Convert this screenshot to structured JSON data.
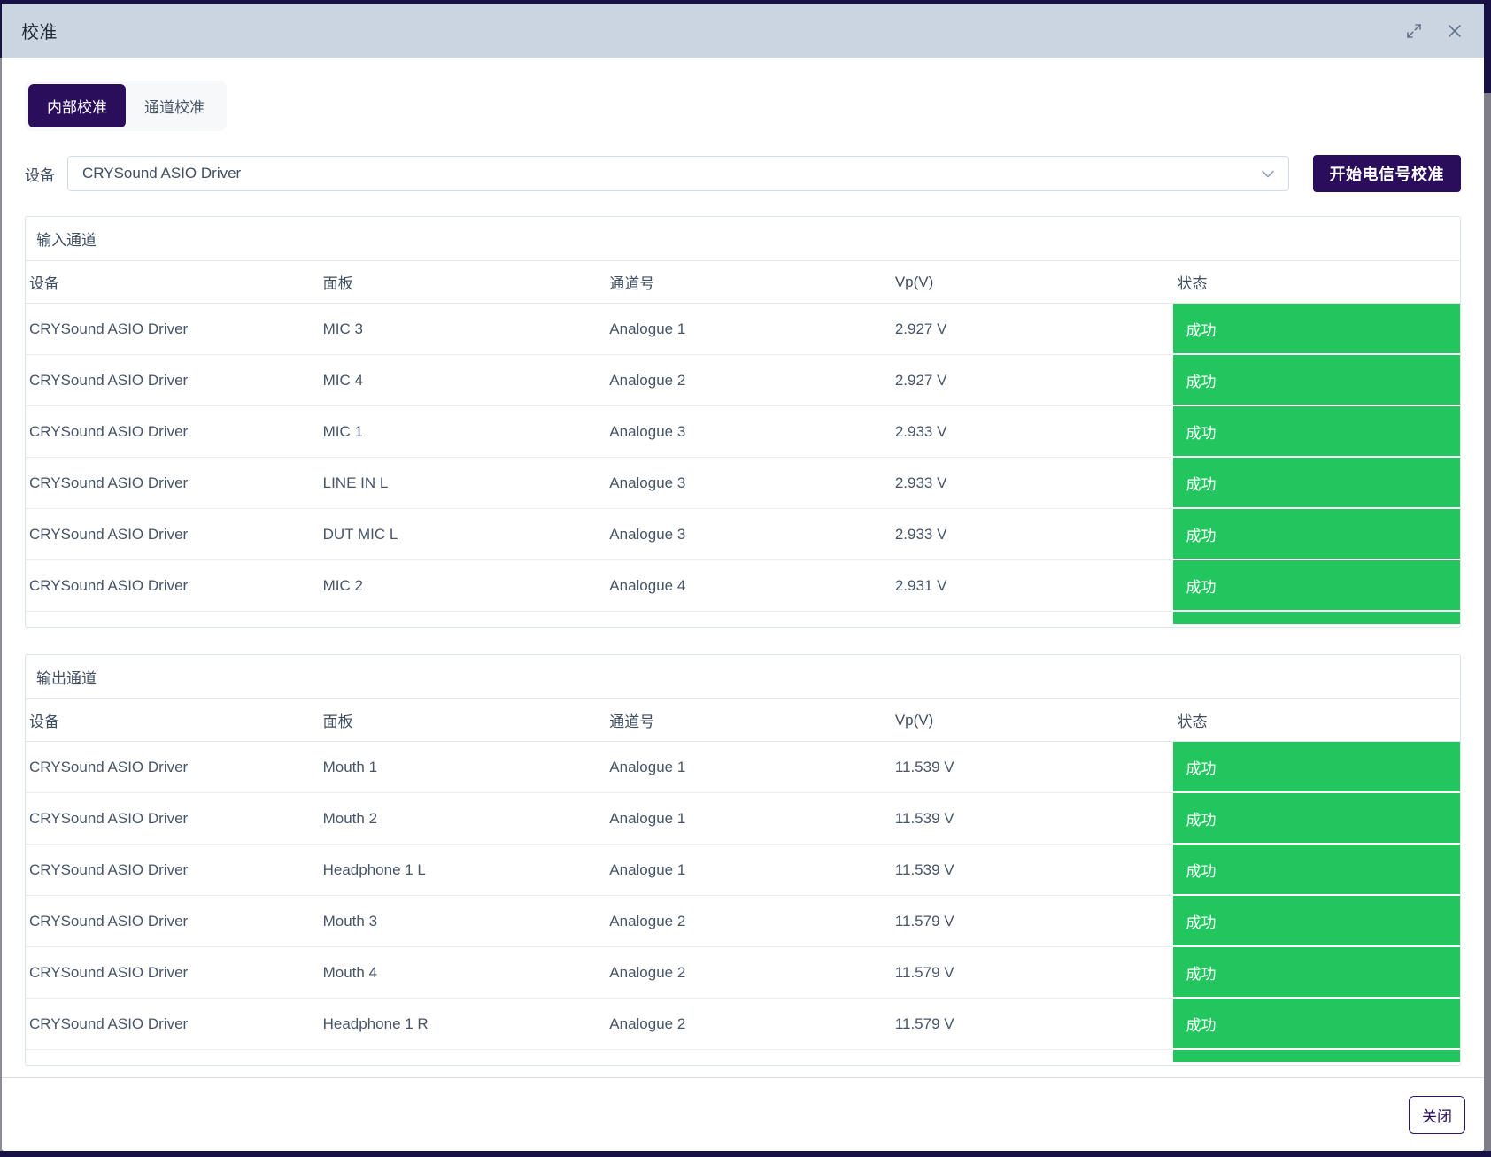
{
  "dialog": {
    "title": "校准"
  },
  "tabs": [
    {
      "label": "内部校准",
      "active": true
    },
    {
      "label": "通道校准",
      "active": false
    }
  ],
  "device": {
    "label": "设备",
    "value": "CRYSound ASIO Driver"
  },
  "actions": {
    "start_calibration": "开始电信号校准",
    "close": "关闭"
  },
  "colors": {
    "primary": "#2a0d5b",
    "success": "#22c55e",
    "titlebar": "#cbd5e1"
  },
  "input_section": {
    "title": "输入通道",
    "columns": [
      "设备",
      "面板",
      "通道号",
      "Vp(V)",
      "状态"
    ],
    "rows": [
      {
        "device": "CRYSound ASIO Driver",
        "panel": "MIC 3",
        "channel": "Analogue 1",
        "vp": "2.927 V",
        "status": "成功"
      },
      {
        "device": "CRYSound ASIO Driver",
        "panel": "MIC 4",
        "channel": "Analogue 2",
        "vp": "2.927 V",
        "status": "成功"
      },
      {
        "device": "CRYSound ASIO Driver",
        "panel": "MIC 1",
        "channel": "Analogue 3",
        "vp": "2.933 V",
        "status": "成功"
      },
      {
        "device": "CRYSound ASIO Driver",
        "panel": "LINE IN L",
        "channel": "Analogue 3",
        "vp": "2.933 V",
        "status": "成功"
      },
      {
        "device": "CRYSound ASIO Driver",
        "panel": "DUT MIC L",
        "channel": "Analogue 3",
        "vp": "2.933 V",
        "status": "成功"
      },
      {
        "device": "CRYSound ASIO Driver",
        "panel": "MIC 2",
        "channel": "Analogue 4",
        "vp": "2.931 V",
        "status": "成功"
      }
    ]
  },
  "output_section": {
    "title": "输出通道",
    "columns": [
      "设备",
      "面板",
      "通道号",
      "Vp(V)",
      "状态"
    ],
    "rows": [
      {
        "device": "CRYSound ASIO Driver",
        "panel": "Mouth 1",
        "channel": "Analogue 1",
        "vp": "11.539 V",
        "status": "成功"
      },
      {
        "device": "CRYSound ASIO Driver",
        "panel": "Mouth 2",
        "channel": "Analogue 1",
        "vp": "11.539 V",
        "status": "成功"
      },
      {
        "device": "CRYSound ASIO Driver",
        "panel": "Headphone 1 L",
        "channel": "Analogue 1",
        "vp": "11.539 V",
        "status": "成功"
      },
      {
        "device": "CRYSound ASIO Driver",
        "panel": "Mouth 3",
        "channel": "Analogue 2",
        "vp": "11.579 V",
        "status": "成功"
      },
      {
        "device": "CRYSound ASIO Driver",
        "panel": "Mouth 4",
        "channel": "Analogue 2",
        "vp": "11.579 V",
        "status": "成功"
      },
      {
        "device": "CRYSound ASIO Driver",
        "panel": "Headphone 1 R",
        "channel": "Analogue 2",
        "vp": "11.579 V",
        "status": "成功"
      }
    ]
  }
}
